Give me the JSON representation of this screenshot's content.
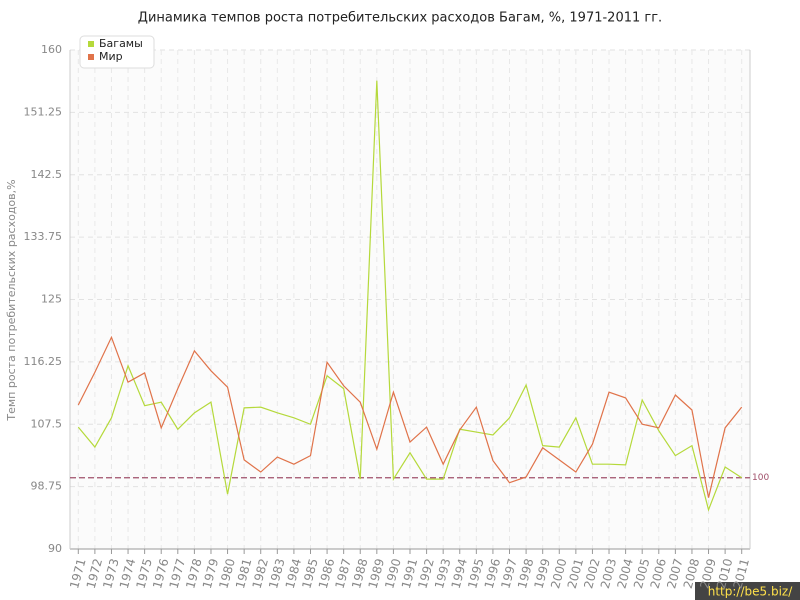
{
  "chart_data": {
    "type": "line",
    "title": "Динамика темпов роста потребительских расходов Багам, %, 1971-2011 гг.",
    "y_label": "Темп роста потребительских расходов,%",
    "categories": [
      "1971",
      "1972",
      "1973",
      "1974",
      "1975",
      "1976",
      "1977",
      "1978",
      "1979",
      "1980",
      "1981",
      "1982",
      "1983",
      "1984",
      "1985",
      "1986",
      "1987",
      "1988",
      "1989",
      "1990",
      "1991",
      "1992",
      "1993",
      "1994",
      "1995",
      "1996",
      "1997",
      "1998",
      "1999",
      "2000",
      "2001",
      "2002",
      "2003",
      "2004",
      "2005",
      "2006",
      "2007",
      "2008",
      "2009",
      "2010",
      "2011"
    ],
    "series": [
      {
        "name": "Багамы",
        "color": "#b5d93b",
        "values": [
          107.1,
          104.3,
          108.4,
          115.7,
          110.1,
          110.6,
          106.8,
          109.1,
          110.6,
          97.7,
          109.8,
          109.9,
          109.1,
          108.4,
          107.5,
          114.3,
          112.5,
          99.8,
          155.7,
          99.8,
          103.5,
          99.8,
          99.8,
          106.8,
          106.4,
          106.0,
          108.4,
          113.0,
          104.5,
          104.3,
          108.4,
          101.9,
          101.9,
          101.8,
          110.9,
          106.6,
          103.1,
          104.5,
          95.5,
          101.5,
          100.0
        ]
      },
      {
        "name": "Мир",
        "color": "#e0734a",
        "values": [
          110.2,
          114.8,
          119.7,
          113.4,
          114.7,
          107.0,
          112.5,
          117.8,
          115.0,
          112.7,
          102.5,
          100.8,
          102.9,
          101.9,
          103.1,
          116.2,
          112.9,
          110.6,
          104.0,
          112.0,
          105.0,
          107.1,
          101.9,
          106.7,
          109.9,
          102.4,
          99.3,
          100.1,
          104.2,
          102.5,
          100.8,
          104.7,
          112.0,
          111.2,
          107.5,
          107.0,
          111.6,
          109.5,
          97.2,
          107.0,
          109.9
        ]
      }
    ],
    "ylim": [
      90,
      160
    ],
    "yticks": [
      90,
      98.75,
      107.5,
      116.25,
      125,
      133.75,
      142.5,
      151.25,
      160
    ],
    "grid": true,
    "legend": "top-left",
    "reference_line": {
      "value": 100,
      "color": "#a0506a"
    },
    "watermark": "http://be5.biz/"
  }
}
